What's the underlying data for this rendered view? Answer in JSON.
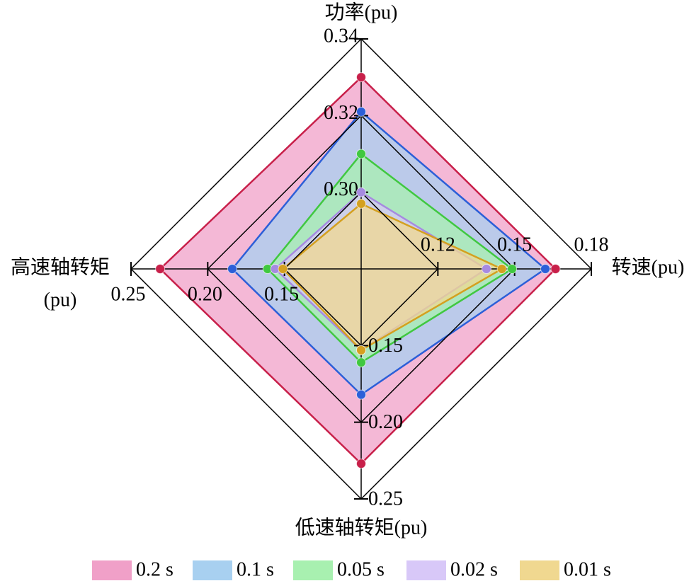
{
  "chart_data": {
    "type": "radar",
    "axes": [
      {
        "label_lines": [
          "功率(pu)"
        ],
        "lim": [
          0.28,
          0.34
        ],
        "ticks": [
          {
            "value": 0.3,
            "label": "0.30"
          },
          0.32,
          0.34
        ]
      },
      {
        "label_lines": [
          "转速(pu)"
        ],
        "lim": [
          0.09,
          0.18
        ],
        "ticks": [
          0.12,
          0.15,
          0.18
        ]
      },
      {
        "label_lines": [
          "低速轴转矩(pu)"
        ],
        "lim": [
          0.1,
          0.25
        ],
        "ticks": [
          0.15,
          {
            "value": 0.2,
            "label": "0.20"
          },
          0.25
        ]
      },
      {
        "label_lines": [
          "高速轴转矩",
          "(pu)"
        ],
        "lim": [
          0.1,
          0.25
        ],
        "ticks": [
          0.15,
          {
            "value": 0.2,
            "label": "0.20"
          },
          0.25
        ]
      }
    ],
    "series": [
      {
        "name": "0.2 s",
        "color": "#f0a0c8",
        "edge_color": "#c8204a",
        "values": [
          0.33,
          0.166,
          0.227,
          0.231
        ]
      },
      {
        "name": "0.1 s",
        "color": "#a8d0f0",
        "edge_color": "#2c5fd8",
        "values": [
          0.321,
          0.162,
          0.182,
          0.184
        ]
      },
      {
        "name": "0.05 s",
        "color": "#a8f0b0",
        "edge_color": "#40c840",
        "values": [
          0.31,
          0.149,
          0.161,
          0.161
        ]
      },
      {
        "name": "0.02 s",
        "color": "#d8c8f8",
        "edge_color": "#a68ae0",
        "values": [
          0.3,
          0.139,
          0.153,
          0.156
        ]
      },
      {
        "name": "0.01 s",
        "color": "#f0d890",
        "edge_color": "#d4a020",
        "values": [
          0.297,
          0.145,
          0.153,
          0.151
        ]
      }
    ],
    "grid": true,
    "legend": "bottom"
  }
}
